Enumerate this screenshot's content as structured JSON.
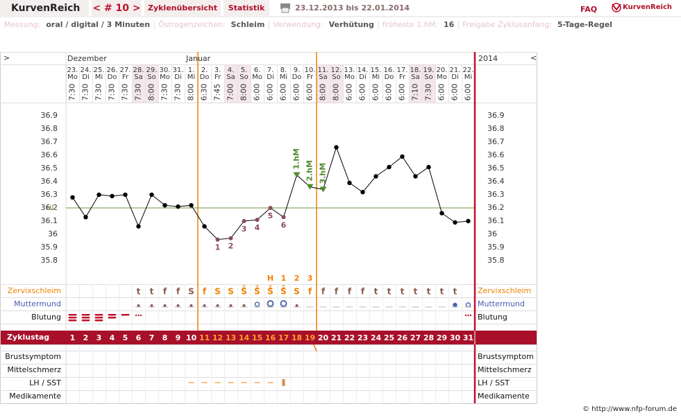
{
  "header": {
    "brand": "KurvenReich",
    "cycle_nav": "< # 10 >",
    "tabs": [
      "Zyklenübersicht",
      "Statistik"
    ],
    "period": "23.12.2013 bis 22.01.2014",
    "faq": "FAQ",
    "logo": "KurvenReich"
  },
  "settings": [
    {
      "label": "Messung:",
      "value": "oral / digital / 3 Minuten"
    },
    {
      "label": "Östrogenzeichen:",
      "value": "Schleim"
    },
    {
      "label": "Verwendung:",
      "value": "Verhütung"
    },
    {
      "label": "früheste 1.hM:",
      "value": "16"
    },
    {
      "label": "Freigabe Zyklusanfang:",
      "value": "5-Tage-Regel"
    }
  ],
  "chart_data": {
    "type": "line",
    "nav_left": ">",
    "nav_right": "<",
    "months": [
      "Dezember",
      "Januar"
    ],
    "year": "2014",
    "dates": [
      "23.",
      "24.",
      "25.",
      "26.",
      "27.",
      "28.",
      "29.",
      "30.",
      "31.",
      "1.",
      "2.",
      "3.",
      "4.",
      "5.",
      "6.",
      "7.",
      "8.",
      "9.",
      "10.",
      "11.",
      "12.",
      "13.",
      "14.",
      "15.",
      "16.",
      "17.",
      "18.",
      "19.",
      "20.",
      "21.",
      "22."
    ],
    "weekdays": [
      "Mo",
      "Di",
      "Mi",
      "Do",
      "Fr",
      "Sa",
      "So",
      "Mo",
      "Di",
      "Mi",
      "Do",
      "Fr",
      "Sa",
      "So",
      "Mo",
      "Di",
      "Mi",
      "Do",
      "Fr",
      "Sa",
      "So",
      "Mo",
      "Di",
      "Mi",
      "Do",
      "Fr",
      "Sa",
      "So",
      "Mo",
      "Di",
      "Mi"
    ],
    "times": [
      "7:30",
      "7:30",
      "7:30",
      "7:30",
      "7:30",
      "7:30",
      "8:00",
      "7:30",
      "7:30",
      "8:00",
      "6:30",
      "7:45",
      "7:00",
      "8:00",
      "6:00",
      "6:00",
      "6:00",
      "6:00",
      "6:00",
      "8:00",
      "8:00",
      "6:00",
      "6:00",
      "6:00",
      "6:00",
      "6:00",
      "7:10",
      "7:30",
      "6:00",
      "6:00",
      "6:00"
    ],
    "shaded": [
      false,
      false,
      false,
      false,
      false,
      true,
      true,
      false,
      false,
      false,
      false,
      false,
      true,
      true,
      false,
      false,
      false,
      false,
      false,
      true,
      true,
      false,
      false,
      false,
      false,
      false,
      true,
      true,
      false,
      false,
      false
    ],
    "values": [
      36.28,
      36.13,
      36.3,
      36.29,
      36.3,
      36.06,
      36.3,
      36.22,
      36.21,
      36.22,
      36.06,
      35.96,
      35.97,
      36.1,
      36.11,
      36.2,
      36.13,
      36.45,
      36.36,
      36.34,
      36.66,
      36.39,
      36.32,
      36.44,
      36.51,
      36.59,
      36.44,
      36.51,
      36.16,
      36.09,
      36.1
    ],
    "markers": [
      "dot",
      "dot",
      "dot",
      "dot",
      "dot",
      "dot",
      "dot",
      "dot",
      "dot",
      "dot",
      "dot",
      "low",
      "low",
      "low",
      "low",
      "low",
      "low",
      "triangle",
      "triangle",
      "triangle",
      "dot",
      "dot",
      "dot",
      "dot",
      "dot",
      "dot",
      "dot",
      "dot",
      "dot",
      "dot",
      "dot"
    ],
    "point_labels": [
      null,
      null,
      null,
      null,
      null,
      null,
      null,
      null,
      null,
      null,
      null,
      "1",
      "2",
      "3",
      "4",
      "5",
      "6",
      "1.hM",
      "2.hM",
      "3.hM",
      null,
      null,
      null,
      null,
      null,
      null,
      null,
      null,
      null,
      null,
      null
    ],
    "color": "#000000",
    "low_color": "#8a4a5e",
    "high_color": "#4e8a2e",
    "ylim": [
      35.7,
      37.0
    ],
    "yticks": [
      35.8,
      35.9,
      36,
      36.1,
      36.2,
      36.3,
      36.4,
      36.5,
      36.6,
      36.7,
      36.8,
      36.9
    ],
    "grid": false,
    "hl": {
      "value": 36.2,
      "label": "HL",
      "color": "#6a9a3a"
    },
    "rows": {
      "zervix": "Zervixschleim",
      "muttermund": "Muttermund",
      "blutung": "Blutung",
      "zyklustag": "Zyklustag",
      "brust": "Brustsymptom",
      "mittel": "Mittelschmerz",
      "lh": "LH / SST",
      "medi": "Medikamente"
    },
    "peak_labels": [
      null,
      null,
      null,
      null,
      null,
      null,
      null,
      null,
      null,
      null,
      null,
      null,
      null,
      null,
      null,
      "H",
      "1",
      "2",
      "3",
      null,
      null,
      null,
      null,
      null,
      null,
      null,
      null,
      null,
      null,
      null,
      null
    ],
    "zervix": [
      null,
      null,
      null,
      null,
      null,
      "t",
      "t",
      "f",
      "f",
      "S",
      "f",
      "S",
      "S",
      "S",
      "S",
      "S",
      "S",
      "S",
      "f",
      "f",
      "f",
      "f",
      "f",
      "t",
      "t",
      "t",
      "t",
      "t",
      "t",
      "t",
      null
    ],
    "zervix_sup": [
      null,
      null,
      null,
      null,
      null,
      null,
      null,
      null,
      null,
      null,
      null,
      null,
      null,
      "±",
      "±",
      "±",
      "±",
      null,
      null,
      null,
      null,
      null,
      null,
      null,
      null,
      null,
      null,
      null,
      null,
      null,
      null
    ],
    "cycle_days": [
      1,
      2,
      3,
      4,
      5,
      6,
      7,
      8,
      9,
      10,
      11,
      12,
      13,
      14,
      15,
      16,
      17,
      18,
      19,
      20,
      21,
      22,
      23,
      24,
      25,
      26,
      27,
      28,
      29,
      30,
      31
    ]
  },
  "footer": "© http://www.nfp-forum.de"
}
